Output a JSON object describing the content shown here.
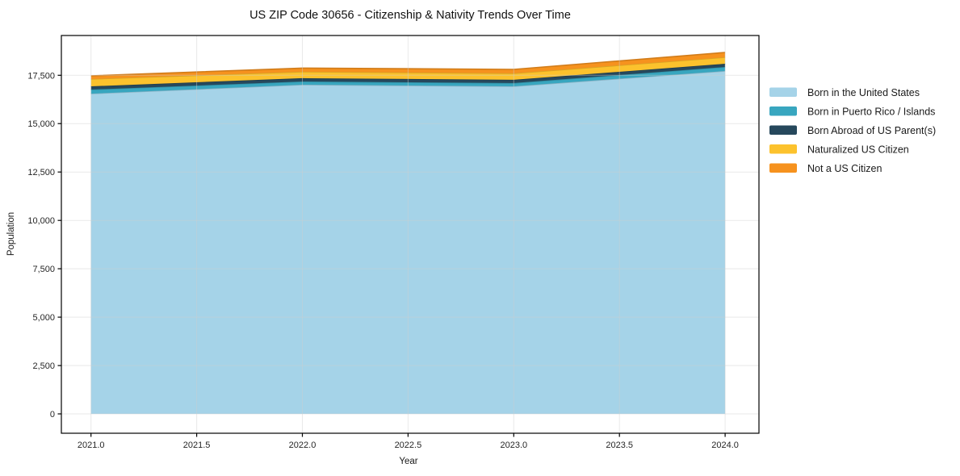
{
  "chart_data": {
    "type": "area",
    "stacked": true,
    "title": "US ZIP Code 30656 - Citizenship & Nativity Trends Over Time",
    "xlabel": "Year",
    "ylabel": "Population",
    "x": [
      2021,
      2022,
      2023,
      2024
    ],
    "series": [
      {
        "name": "Born in the United States",
        "color": "#a5d3e8",
        "values": [
          16550,
          17010,
          16930,
          17720
        ]
      },
      {
        "name": "Born in Puerto Rico / Islands",
        "color": "#38a6bf",
        "values": [
          210,
          170,
          170,
          210
        ]
      },
      {
        "name": "Born Abroad of US Parent(s)",
        "color": "#26485c",
        "values": [
          170,
          170,
          165,
          165
        ]
      },
      {
        "name": "Naturalized US Citizen",
        "color": "#fcc22d",
        "values": [
          375,
          335,
          335,
          335
        ]
      },
      {
        "name": "Not a US Citizen",
        "color": "#f6921e",
        "values": [
          165,
          185,
          205,
          250
        ]
      }
    ],
    "totals": [
      17470,
      17870,
      17805,
      18680
    ],
    "x_ticks": [
      2021.0,
      2021.5,
      2022.0,
      2022.5,
      2023.0,
      2023.5,
      2024.0
    ],
    "x_tick_labels": [
      "2021.0",
      "2021.5",
      "2022.0",
      "2022.5",
      "2023.0",
      "2023.5",
      "2024.0"
    ],
    "y_ticks": [
      0,
      2500,
      5000,
      7500,
      10000,
      12500,
      15000,
      17500
    ],
    "y_tick_labels": [
      "0",
      "2,500",
      "5,000",
      "7,500",
      "10,000",
      "12,500",
      "15,000",
      "17,500"
    ],
    "xlim": [
      2020.86,
      2024.16
    ],
    "ylim": [
      -1000,
      19555
    ],
    "grid": true,
    "legend_position": "outside-right",
    "colors": {
      "grid": "#cfcfcf",
      "spine": "#000000",
      "background": "#ffffff"
    }
  }
}
